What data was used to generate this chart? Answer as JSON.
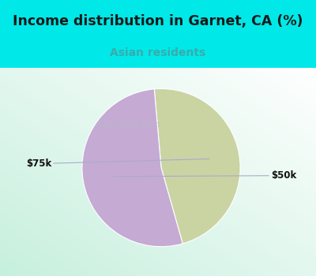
{
  "title": "Income distribution in Garnet, CA (%)",
  "subtitle": "Asian residents",
  "title_color": "#1a1a1a",
  "subtitle_color": "#3aabab",
  "title_bg_color": "#00e8e8",
  "slices": [
    {
      "label": "$75k",
      "value": 47,
      "color": "#c9d4a2"
    },
    {
      "label": "$50k",
      "value": 53,
      "color": "#c5aad4"
    }
  ],
  "watermark": "City-Data.com",
  "watermark_color": "#b0c0c0",
  "label_color": "#111111",
  "line_color": "#aaaacc"
}
